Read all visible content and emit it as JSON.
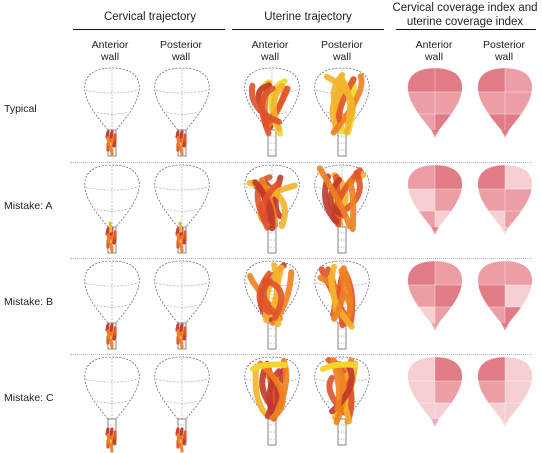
{
  "groups": [
    {
      "title_lines": [
        "Cervical trajectory"
      ]
    },
    {
      "title_lines": [
        "Uterine trajectory"
      ]
    },
    {
      "title_lines": [
        "Cervical coverage index and",
        "uterine coverage index"
      ]
    }
  ],
  "column_headers": [
    [
      "Anterior",
      "wall"
    ],
    [
      "Posterior",
      "wall"
    ],
    [
      "Anterior",
      "wall"
    ],
    [
      "Posterior",
      "wall"
    ],
    [
      "Anterior",
      "wall"
    ],
    [
      "Posterior",
      "wall"
    ]
  ],
  "rows": [
    {
      "label": "Typical"
    },
    {
      "label": "Mistake: A"
    },
    {
      "label": "Mistake: B"
    },
    {
      "label": "Mistake: C"
    }
  ],
  "colors": {
    "outline": "#555555",
    "trajectory": [
      "#c0392b",
      "#e0522a",
      "#f07f1e",
      "#f4b32a",
      "#f2d52d"
    ],
    "coverage_dark": "#e17b86",
    "coverage_mid": "#ec9ea6",
    "coverage_light": "#f6cfd3"
  }
}
